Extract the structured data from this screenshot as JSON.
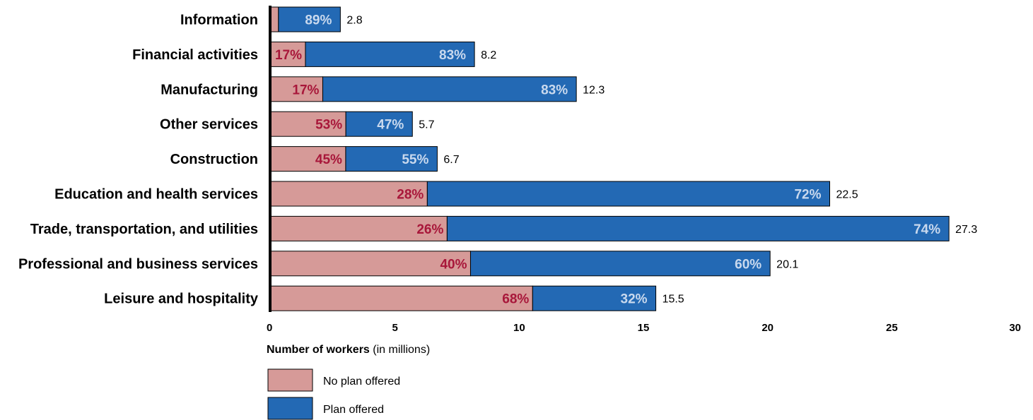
{
  "chart_data": {
    "type": "bar",
    "orientation": "horizontal",
    "stacked": true,
    "categories": [
      "Information",
      "Financial activities",
      "Manufacturing",
      "Other services",
      "Construction",
      "Education and health services",
      "Trade, transportation, and utilities",
      "Professional and business services",
      "Leisure and hospitality"
    ],
    "totals": [
      2.8,
      8.2,
      12.3,
      5.7,
      6.7,
      22.5,
      27.3,
      20.1,
      15.5
    ],
    "total_labels": [
      "2.8",
      "8.2",
      "12.3",
      "5.7",
      "6.7",
      "22.5",
      "27.3",
      "20.1",
      "15.5"
    ],
    "series": [
      {
        "name": "No plan offered",
        "color": "#d69a98",
        "label_color": "#a8173a",
        "percent": [
          11,
          17,
          17,
          53,
          45,
          28,
          26,
          40,
          68
        ],
        "percent_labels": [
          "",
          "17%",
          "17%",
          "53%",
          "45%",
          "28%",
          "26%",
          "40%",
          "68%"
        ]
      },
      {
        "name": "Plan offered",
        "color": "#2369b4",
        "label_color": "#c9d9ee",
        "percent": [
          89,
          83,
          83,
          47,
          55,
          72,
          74,
          60,
          32
        ],
        "percent_labels": [
          "89%",
          "83%",
          "83%",
          "47%",
          "55%",
          "72%",
          "74%",
          "60%",
          "32%"
        ]
      }
    ],
    "xlim": [
      0,
      30
    ],
    "xticks": [
      0,
      5,
      10,
      15,
      20,
      25,
      30
    ],
    "xtick_labels": [
      "0",
      "5",
      "10",
      "15",
      "20",
      "25",
      "30"
    ],
    "xlabel_bold": "Number of workers",
    "xlabel_rest": " (in millions)",
    "legend_placement": "bottom-left",
    "grid": false
  }
}
